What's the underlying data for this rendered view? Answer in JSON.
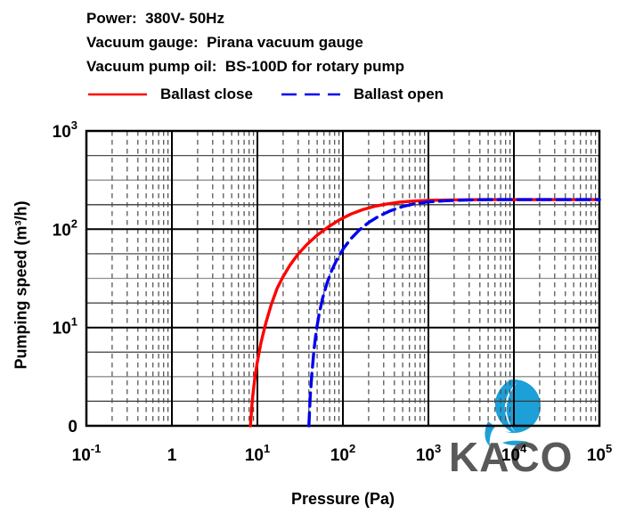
{
  "header": {
    "line1": "Power:  380V- 50Hz",
    "line2": "Vacuum gauge:  Pirana vacuum gauge",
    "line3": "Vacuum pump oil:  BS-100D for rotary pump"
  },
  "legend": [
    {
      "label": "Ballast close",
      "color": "#ff0000",
      "dash": ""
    },
    {
      "label": "Ballast open",
      "color": "#0000ee",
      "dash": "17 9"
    }
  ],
  "watermark": {
    "text": "KACO",
    "text_color": "#595959",
    "logo_color": "#1d9fd8"
  },
  "chart_data": {
    "type": "line",
    "title": "",
    "xlabel": "Pressure (Pa)",
    "ylabel": "Pumping speed (m³/h)",
    "x_axis": {
      "label": "Pressure (Pa)",
      "scale": "log",
      "min": 0.1,
      "max": 100000,
      "ticks": [
        {
          "v": 0.1,
          "m": "10",
          "e": "-1"
        },
        {
          "v": 1,
          "m": "1"
        },
        {
          "v": 10,
          "m": "10",
          "e": "1"
        },
        {
          "v": 100,
          "m": "10",
          "e": "2"
        },
        {
          "v": 1000,
          "m": "10",
          "e": "3"
        },
        {
          "v": 10000,
          "m": "10",
          "e": "4"
        },
        {
          "v": 100000,
          "m": "10",
          "e": "5"
        }
      ]
    },
    "y_axis": {
      "label": "Pumping speed (m³/h)",
      "scale": "log",
      "min": 1,
      "max": 1000,
      "bottom_tick_label": "0",
      "ticks": [
        {
          "v": 1,
          "m": "0"
        },
        {
          "v": 10,
          "m": "10",
          "e": "1"
        },
        {
          "v": 100,
          "m": "10",
          "e": "2"
        },
        {
          "v": 1000,
          "m": "10",
          "e": "3"
        }
      ]
    },
    "grid": {
      "major_color": "#000000",
      "v_minor_color": "#4a4a4a",
      "v_minor_dash": "5.5 4.5",
      "v_minor_steps": [
        2,
        3,
        4,
        5,
        6,
        7,
        8,
        9
      ],
      "h_minor_colors": [
        "#383838",
        "#8f8f8f",
        "#4f4f4f"
      ],
      "h_minor_per_decade": "3 uniform quarter lines"
    },
    "plateau_speed_m3h": 200,
    "series": [
      {
        "name": "Ballast close",
        "color": "#ff0000",
        "dash": "",
        "points": [
          [
            8.3,
            1
          ],
          [
            8.7,
            1.8
          ],
          [
            9.3,
            3
          ],
          [
            10,
            4.5
          ],
          [
            11,
            7
          ],
          [
            12.5,
            11
          ],
          [
            14.5,
            17
          ],
          [
            17,
            25
          ],
          [
            20,
            33
          ],
          [
            24,
            43
          ],
          [
            30,
            56
          ],
          [
            38,
            70
          ],
          [
            50,
            87
          ],
          [
            68,
            106
          ],
          [
            92,
            125
          ],
          [
            125,
            143
          ],
          [
            170,
            158
          ],
          [
            235,
            171
          ],
          [
            330,
            181
          ],
          [
            470,
            189
          ],
          [
            700,
            194
          ],
          [
            1100,
            197
          ],
          [
            2000,
            199
          ],
          [
            4000,
            200
          ],
          [
            100000,
            200
          ]
        ]
      },
      {
        "name": "Ballast open",
        "color": "#0000ee",
        "dash": "15 7",
        "points": [
          [
            40,
            1
          ],
          [
            41.5,
            2
          ],
          [
            43.5,
            3.5
          ],
          [
            46,
            6
          ],
          [
            49,
            9.5
          ],
          [
            53,
            14
          ],
          [
            58,
            20
          ],
          [
            65,
            28
          ],
          [
            74,
            38
          ],
          [
            86,
            50
          ],
          [
            102,
            64
          ],
          [
            124,
            80
          ],
          [
            155,
            98
          ],
          [
            200,
            117
          ],
          [
            265,
            136
          ],
          [
            360,
            154
          ],
          [
            500,
            170
          ],
          [
            700,
            182
          ],
          [
            1000,
            190
          ],
          [
            1600,
            195
          ],
          [
            2800,
            198
          ],
          [
            5000,
            200
          ],
          [
            100000,
            200
          ]
        ]
      }
    ]
  }
}
